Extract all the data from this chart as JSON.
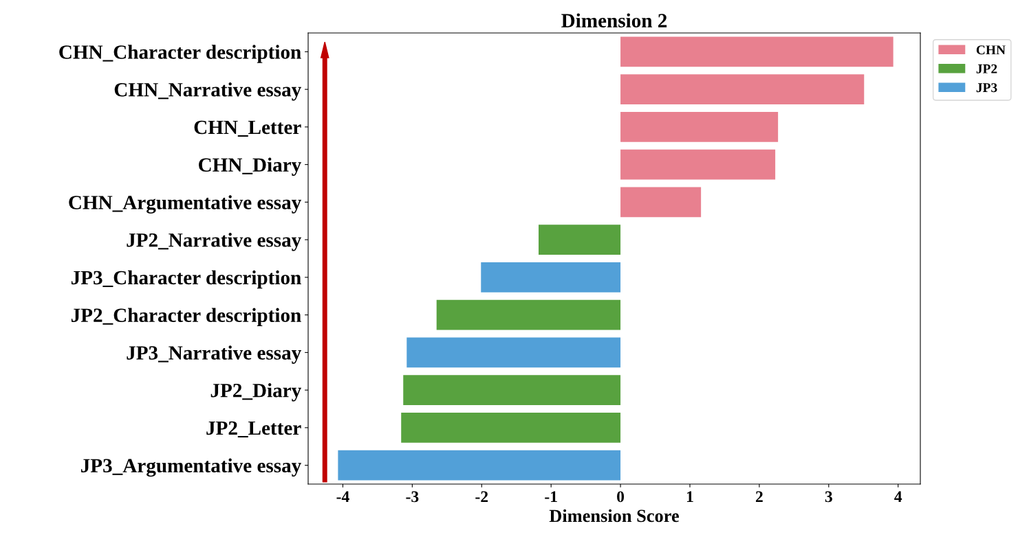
{
  "chart_data": {
    "type": "bar",
    "orientation": "horizontal",
    "title": "Dimension 2",
    "xlabel": "Dimension Score",
    "categories": [
      "CHN_Character description",
      "CHN_Narrative essay",
      "CHN_Letter",
      "CHN_Diary",
      "CHN_Argumentative essay",
      "JP2_Narrative essay",
      "JP3_Character description",
      "JP2_Character description",
      "JP3_Narrative essay",
      "JP2_Diary",
      "JP2_Letter",
      "JP3_Argumentative essay"
    ],
    "series": [
      {
        "name": "CHN",
        "color": "#e8808f",
        "values": [
          3.93,
          3.51,
          2.27,
          2.23,
          1.16,
          null,
          null,
          null,
          null,
          null,
          null,
          null
        ]
      },
      {
        "name": "JP2",
        "color": "#58a23f",
        "values": [
          null,
          null,
          null,
          null,
          null,
          -1.18,
          null,
          -2.65,
          null,
          -3.13,
          -3.16,
          null
        ]
      },
      {
        "name": "JP3",
        "color": "#52a0d8",
        "values": [
          null,
          null,
          null,
          null,
          null,
          null,
          -2.01,
          null,
          -3.08,
          null,
          null,
          -4.07
        ]
      }
    ],
    "xlim": [
      -4.5,
      4.32
    ],
    "xticks": [
      -4,
      -3,
      -2,
      -1,
      0,
      1,
      2,
      3,
      4
    ],
    "grid": false,
    "legend": "top right"
  }
}
